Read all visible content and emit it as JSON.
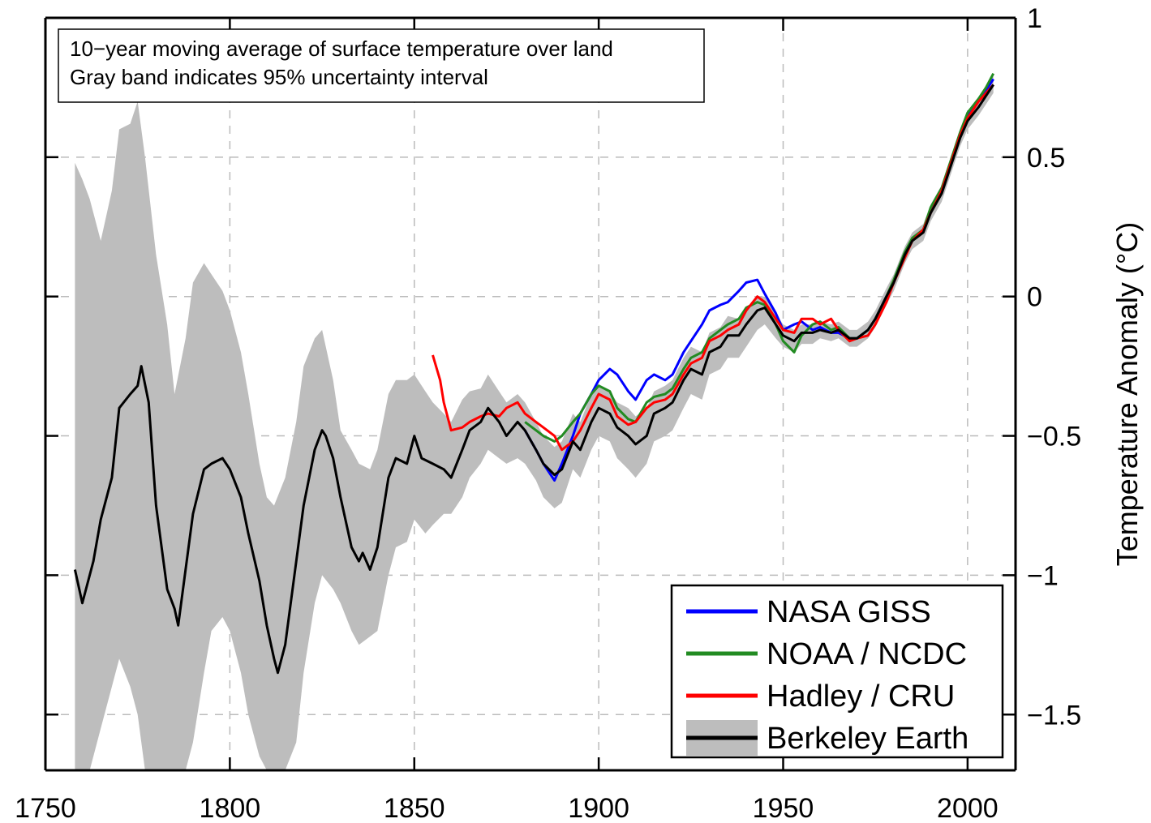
{
  "chart_data": {
    "type": "line",
    "xlim": [
      1750,
      2013
    ],
    "ylim": [
      -1.7,
      1.0
    ],
    "x_ticks": [
      1750,
      1800,
      1850,
      1900,
      1950,
      2000
    ],
    "y_ticks": [
      1,
      0.5,
      0,
      -0.5,
      -1,
      -1.5
    ],
    "y_tick_labels": [
      "1",
      "0.5",
      "0",
      "−0.5",
      "−1",
      "−1.5"
    ],
    "x_tick_labels": [
      "1750",
      "1800",
      "1850",
      "1900",
      "1950",
      "2000"
    ],
    "ylabel": "Temperature Anomaly (°C)",
    "y_axis_side": "right",
    "grid": true,
    "annotation": {
      "line1": "10−year moving average of surface temperature over land",
      "line2": "Gray band indicates 95% uncertainty interval"
    },
    "legend_position": "bottom-right",
    "legend": [
      {
        "name": "NASA GISS",
        "color": "#0000ff"
      },
      {
        "name": "NOAA / NCDC",
        "color": "#228b22"
      },
      {
        "name": "Hadley / CRU",
        "color": "#ff0000"
      },
      {
        "name": "Berkeley Earth",
        "color": "#000000",
        "band_color": "#bdbdbd"
      }
    ],
    "series": [
      {
        "name": "Berkeley Earth",
        "color": "#000000",
        "x": [
          1758,
          1760,
          1763,
          1765,
          1768,
          1770,
          1773,
          1775,
          1776,
          1778,
          1780,
          1783,
          1785,
          1786,
          1788,
          1790,
          1793,
          1795,
          1798,
          1800,
          1803,
          1805,
          1808,
          1810,
          1812,
          1813,
          1815,
          1817,
          1820,
          1823,
          1825,
          1826,
          1828,
          1830,
          1833,
          1835,
          1836,
          1838,
          1840,
          1843,
          1845,
          1848,
          1850,
          1852,
          1855,
          1858,
          1860,
          1863,
          1865,
          1868,
          1870,
          1873,
          1875,
          1878,
          1880,
          1883,
          1885,
          1888,
          1890,
          1893,
          1895,
          1898,
          1900,
          1903,
          1905,
          1908,
          1910,
          1913,
          1915,
          1918,
          1920,
          1923,
          1925,
          1928,
          1930,
          1933,
          1935,
          1938,
          1940,
          1943,
          1945,
          1948,
          1950,
          1953,
          1955,
          1958,
          1960,
          1963,
          1965,
          1968,
          1970,
          1973,
          1975,
          1978,
          1980,
          1983,
          1985,
          1988,
          1990,
          1993,
          1995,
          1998,
          2000,
          2003,
          2005,
          2007
        ],
        "y": [
          -0.98,
          -1.1,
          -0.95,
          -0.8,
          -0.65,
          -0.4,
          -0.35,
          -0.32,
          -0.25,
          -0.38,
          -0.75,
          -1.05,
          -1.12,
          -1.18,
          -0.98,
          -0.78,
          -0.62,
          -0.6,
          -0.58,
          -0.62,
          -0.72,
          -0.85,
          -1.02,
          -1.18,
          -1.3,
          -1.35,
          -1.25,
          -1.05,
          -0.75,
          -0.55,
          -0.48,
          -0.5,
          -0.58,
          -0.72,
          -0.9,
          -0.95,
          -0.92,
          -0.98,
          -0.9,
          -0.65,
          -0.58,
          -0.6,
          -0.5,
          -0.58,
          -0.6,
          -0.62,
          -0.65,
          -0.55,
          -0.48,
          -0.45,
          -0.4,
          -0.45,
          -0.5,
          -0.45,
          -0.48,
          -0.55,
          -0.6,
          -0.64,
          -0.62,
          -0.52,
          -0.55,
          -0.45,
          -0.4,
          -0.42,
          -0.47,
          -0.5,
          -0.53,
          -0.5,
          -0.42,
          -0.4,
          -0.38,
          -0.3,
          -0.26,
          -0.28,
          -0.2,
          -0.18,
          -0.14,
          -0.14,
          -0.1,
          -0.05,
          -0.04,
          -0.1,
          -0.14,
          -0.16,
          -0.13,
          -0.13,
          -0.12,
          -0.13,
          -0.12,
          -0.15,
          -0.15,
          -0.12,
          -0.08,
          0.0,
          0.05,
          0.15,
          0.2,
          0.23,
          0.3,
          0.37,
          0.45,
          0.57,
          0.63,
          0.68,
          0.72,
          0.76
        ]
      },
      {
        "name": "NASA GISS",
        "color": "#0000ff",
        "x": [
          1880,
          1883,
          1885,
          1887,
          1888,
          1890,
          1893,
          1895,
          1898,
          1900,
          1903,
          1905,
          1908,
          1910,
          1913,
          1915,
          1918,
          1920,
          1923,
          1925,
          1928,
          1930,
          1933,
          1935,
          1938,
          1940,
          1943,
          1945,
          1948,
          1950,
          1953,
          1955,
          1958,
          1960,
          1963,
          1965,
          1968,
          1970,
          1973,
          1975,
          1978,
          1980,
          1983,
          1985,
          1988,
          1990,
          1993,
          1995,
          1998,
          2000,
          2003,
          2005,
          2007
        ],
        "y": [
          -0.48,
          -0.55,
          -0.6,
          -0.64,
          -0.66,
          -0.6,
          -0.5,
          -0.42,
          -0.35,
          -0.3,
          -0.26,
          -0.28,
          -0.34,
          -0.37,
          -0.3,
          -0.28,
          -0.3,
          -0.28,
          -0.2,
          -0.16,
          -0.1,
          -0.05,
          -0.03,
          -0.02,
          0.02,
          0.05,
          0.06,
          0.01,
          -0.06,
          -0.12,
          -0.1,
          -0.09,
          -0.12,
          -0.11,
          -0.13,
          -0.13,
          -0.15,
          -0.15,
          -0.12,
          -0.08,
          0.0,
          0.05,
          0.15,
          0.2,
          0.24,
          0.31,
          0.38,
          0.46,
          0.58,
          0.65,
          0.7,
          0.74,
          0.78
        ]
      },
      {
        "name": "NOAA / NCDC",
        "color": "#228b22",
        "x": [
          1880,
          1883,
          1885,
          1888,
          1890,
          1893,
          1895,
          1898,
          1900,
          1903,
          1905,
          1908,
          1910,
          1913,
          1915,
          1918,
          1920,
          1923,
          1925,
          1928,
          1930,
          1933,
          1935,
          1938,
          1940,
          1943,
          1945,
          1948,
          1950,
          1953,
          1955,
          1958,
          1960,
          1963,
          1965,
          1968,
          1970,
          1973,
          1975,
          1978,
          1980,
          1983,
          1985,
          1988,
          1990,
          1993,
          1995,
          1998,
          2000,
          2003,
          2005,
          2007
        ],
        "y": [
          -0.45,
          -0.48,
          -0.5,
          -0.52,
          -0.5,
          -0.45,
          -0.42,
          -0.35,
          -0.32,
          -0.34,
          -0.4,
          -0.44,
          -0.45,
          -0.38,
          -0.36,
          -0.35,
          -0.33,
          -0.26,
          -0.22,
          -0.2,
          -0.15,
          -0.12,
          -0.1,
          -0.08,
          -0.04,
          -0.02,
          -0.03,
          -0.1,
          -0.16,
          -0.2,
          -0.14,
          -0.1,
          -0.09,
          -0.12,
          -0.11,
          -0.15,
          -0.15,
          -0.12,
          -0.08,
          0.0,
          0.06,
          0.16,
          0.21,
          0.24,
          0.32,
          0.39,
          0.47,
          0.59,
          0.66,
          0.71,
          0.75,
          0.8
        ]
      },
      {
        "name": "Hadley / CRU",
        "color": "#ff0000",
        "x": [
          1855,
          1857,
          1858,
          1860,
          1863,
          1865,
          1868,
          1870,
          1873,
          1875,
          1878,
          1880,
          1883,
          1885,
          1888,
          1890,
          1893,
          1895,
          1898,
          1900,
          1903,
          1905,
          1908,
          1910,
          1913,
          1915,
          1918,
          1920,
          1923,
          1925,
          1928,
          1930,
          1933,
          1935,
          1938,
          1940,
          1943,
          1945,
          1948,
          1950,
          1953,
          1955,
          1958,
          1960,
          1963,
          1965,
          1968,
          1970,
          1973,
          1975,
          1978,
          1980,
          1983,
          1985,
          1988,
          1990,
          1993,
          1995,
          1998,
          2000,
          2003,
          2005,
          2007
        ],
        "y": [
          -0.21,
          -0.3,
          -0.38,
          -0.48,
          -0.47,
          -0.45,
          -0.43,
          -0.42,
          -0.43,
          -0.4,
          -0.38,
          -0.42,
          -0.45,
          -0.47,
          -0.5,
          -0.55,
          -0.52,
          -0.48,
          -0.4,
          -0.35,
          -0.37,
          -0.43,
          -0.46,
          -0.45,
          -0.4,
          -0.38,
          -0.37,
          -0.35,
          -0.28,
          -0.24,
          -0.22,
          -0.16,
          -0.14,
          -0.12,
          -0.1,
          -0.05,
          0.0,
          -0.02,
          -0.08,
          -0.12,
          -0.13,
          -0.08,
          -0.08,
          -0.1,
          -0.08,
          -0.12,
          -0.16,
          -0.15,
          -0.14,
          -0.1,
          -0.02,
          0.05,
          0.14,
          0.2,
          0.24,
          0.3,
          0.38,
          0.46,
          0.58,
          0.64,
          0.7,
          0.73,
          0.76
        ]
      }
    ],
    "uncertainty_band": {
      "x": [
        1758,
        1760,
        1762,
        1765,
        1768,
        1770,
        1773,
        1775,
        1777,
        1780,
        1783,
        1785,
        1788,
        1790,
        1793,
        1795,
        1798,
        1800,
        1803,
        1805,
        1808,
        1810,
        1812,
        1815,
        1818,
        1820,
        1823,
        1825,
        1828,
        1830,
        1833,
        1835,
        1838,
        1840,
        1843,
        1845,
        1848,
        1850,
        1853,
        1855,
        1858,
        1860,
        1863,
        1865,
        1868,
        1870,
        1873,
        1875,
        1878,
        1880,
        1883,
        1885,
        1888,
        1890,
        1893,
        1895,
        1898,
        1900,
        1903,
        1905,
        1908,
        1910,
        1913,
        1915,
        1918,
        1920,
        1923,
        1925,
        1928,
        1930,
        1933,
        1935,
        1938,
        1940,
        1943,
        1945,
        1948,
        1950,
        1953,
        1955,
        1958,
        1960,
        1963,
        1965,
        1968,
        1970,
        1973,
        1975,
        1978,
        1980,
        1983,
        1985,
        1988,
        1990,
        1993,
        1995,
        1998,
        2000,
        2003,
        2005,
        2007
      ],
      "upper": [
        0.48,
        0.42,
        0.35,
        0.2,
        0.38,
        0.6,
        0.62,
        0.7,
        0.5,
        0.15,
        -0.1,
        -0.35,
        -0.15,
        0.05,
        0.12,
        0.08,
        0.02,
        -0.05,
        -0.2,
        -0.35,
        -0.6,
        -0.72,
        -0.75,
        -0.65,
        -0.45,
        -0.25,
        -0.15,
        -0.12,
        -0.3,
        -0.48,
        -0.55,
        -0.6,
        -0.62,
        -0.55,
        -0.35,
        -0.3,
        -0.3,
        -0.28,
        -0.34,
        -0.38,
        -0.42,
        -0.45,
        -0.37,
        -0.34,
        -0.33,
        -0.28,
        -0.34,
        -0.38,
        -0.35,
        -0.38,
        -0.45,
        -0.5,
        -0.54,
        -0.52,
        -0.42,
        -0.45,
        -0.35,
        -0.32,
        -0.34,
        -0.38,
        -0.4,
        -0.43,
        -0.4,
        -0.34,
        -0.32,
        -0.3,
        -0.22,
        -0.18,
        -0.2,
        -0.13,
        -0.11,
        -0.07,
        -0.08,
        -0.05,
        0.0,
        0.0,
        -0.06,
        -0.1,
        -0.12,
        -0.1,
        -0.1,
        -0.09,
        -0.1,
        -0.09,
        -0.12,
        -0.12,
        -0.09,
        -0.05,
        0.03,
        0.08,
        0.18,
        0.23,
        0.26,
        0.33,
        0.4,
        0.48,
        0.6,
        0.66,
        0.71,
        0.75,
        0.79
      ],
      "lower": [
        -1.7,
        -1.7,
        -1.7,
        -1.55,
        -1.4,
        -1.3,
        -1.4,
        -1.5,
        -1.7,
        -1.7,
        -1.7,
        -1.7,
        -1.7,
        -1.6,
        -1.35,
        -1.2,
        -1.15,
        -1.2,
        -1.35,
        -1.5,
        -1.65,
        -1.7,
        -1.7,
        -1.7,
        -1.6,
        -1.35,
        -1.1,
        -1.0,
        -1.05,
        -1.1,
        -1.2,
        -1.25,
        -1.22,
        -1.2,
        -1.0,
        -0.9,
        -0.88,
        -0.8,
        -0.85,
        -0.82,
        -0.78,
        -0.78,
        -0.72,
        -0.65,
        -0.6,
        -0.55,
        -0.58,
        -0.6,
        -0.58,
        -0.6,
        -0.66,
        -0.72,
        -0.76,
        -0.74,
        -0.62,
        -0.65,
        -0.55,
        -0.5,
        -0.52,
        -0.58,
        -0.62,
        -0.65,
        -0.6,
        -0.52,
        -0.5,
        -0.48,
        -0.4,
        -0.35,
        -0.37,
        -0.28,
        -0.26,
        -0.22,
        -0.22,
        -0.18,
        -0.12,
        -0.1,
        -0.15,
        -0.18,
        -0.2,
        -0.17,
        -0.17,
        -0.15,
        -0.16,
        -0.15,
        -0.18,
        -0.18,
        -0.15,
        -0.11,
        -0.03,
        0.02,
        0.12,
        0.17,
        0.2,
        0.27,
        0.34,
        0.42,
        0.54,
        0.6,
        0.65,
        0.69,
        0.73
      ]
    }
  }
}
